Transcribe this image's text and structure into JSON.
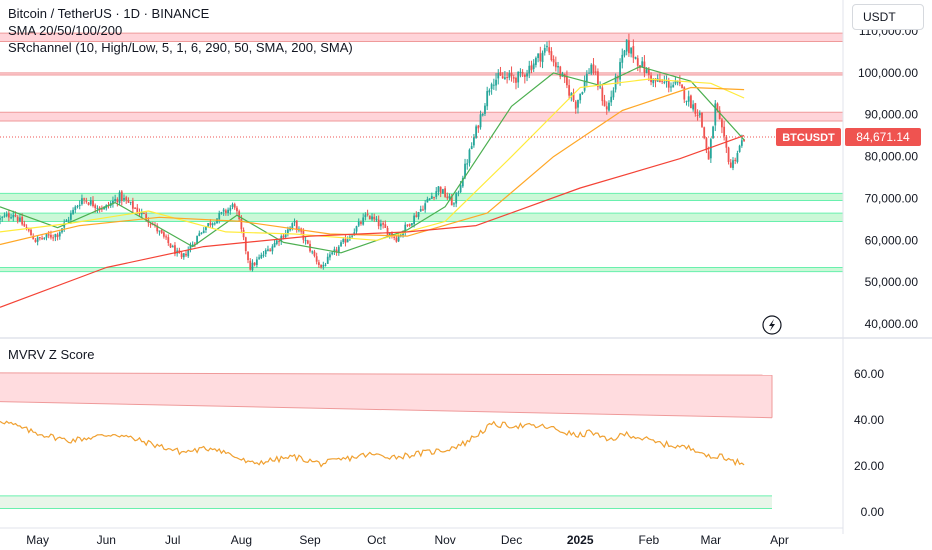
{
  "header": {
    "title": "Bitcoin / TetherUS · 1D · BINANCE",
    "indicator_sma": "SMA 20/50/100/200",
    "indicator_sr": "SRchannel (10, High/Low, 5, 1, 6, 290, 50, SMA, 200, SMA)",
    "currency": "USDT"
  },
  "colors": {
    "up": "#26a69a",
    "down": "#ef5350",
    "sma20": "#4caf50",
    "sma50": "#ffeb3b",
    "sma100": "#ffa726",
    "sma200": "#f44336",
    "resistance_fill": "#ffcdd2",
    "support_fill": "#b9f6ca",
    "mvrv_line": "#f0a030",
    "price_label_bg": "#ef5350"
  },
  "chart_data": [
    {
      "type": "candlestick",
      "symbol": "BTCUSDT",
      "last_price_label": "84,671.14",
      "last_price": 84671.14,
      "y_ticks": [
        "40,000.00",
        "50,000.00",
        "60,000.00",
        "70,000.00",
        "80,000.00",
        "90,000.00",
        "100,000.00",
        "110,000.00"
      ],
      "ylim": [
        36000,
        112000
      ],
      "time_labels": [
        "May",
        "Jun",
        "Jul",
        "Aug",
        "Sep",
        "Oct",
        "Nov",
        "Dec",
        "2025",
        "Feb",
        "Mar",
        "Apr"
      ],
      "sr_zones": [
        {
          "kind": "resistance",
          "low": 107500,
          "high": 109500
        },
        {
          "kind": "resistance",
          "low": 99500,
          "high": 100000
        },
        {
          "kind": "resistance",
          "low": 88500,
          "high": 90600
        },
        {
          "kind": "support",
          "low": 69500,
          "high": 71200
        },
        {
          "kind": "support",
          "low": 64500,
          "high": 66500
        },
        {
          "kind": "support",
          "low": 52500,
          "high": 53500
        }
      ],
      "price_path": [
        [
          "2024-04-14",
          65000
        ],
        [
          "2024-04-20",
          66500
        ],
        [
          "2024-04-30",
          60000
        ],
        [
          "2024-05-10",
          61500
        ],
        [
          "2024-05-21",
          70000
        ],
        [
          "2024-05-31",
          67500
        ],
        [
          "2024-06-07",
          70500
        ],
        [
          "2024-06-20",
          65000
        ],
        [
          "2024-07-05",
          55500
        ],
        [
          "2024-07-15",
          63000
        ],
        [
          "2024-07-29",
          68500
        ],
        [
          "2024-08-05",
          53500
        ],
        [
          "2024-08-25",
          64000
        ],
        [
          "2024-09-06",
          53500
        ],
        [
          "2024-09-27",
          66000
        ],
        [
          "2024-10-10",
          60500
        ],
        [
          "2024-10-29",
          72500
        ],
        [
          "2024-11-05",
          68500
        ],
        [
          "2024-11-22",
          98500
        ],
        [
          "2024-12-05",
          99000
        ],
        [
          "2024-12-17",
          106000
        ],
        [
          "2024-12-30",
          92500
        ],
        [
          "2025-01-06",
          102000
        ],
        [
          "2025-01-13",
          91000
        ],
        [
          "2025-01-22",
          106500
        ],
        [
          "2025-02-03",
          98000
        ],
        [
          "2025-02-14",
          97000
        ],
        [
          "2025-02-24",
          90000
        ],
        [
          "2025-02-28",
          79000
        ],
        [
          "2025-03-03",
          92000
        ],
        [
          "2025-03-10",
          77500
        ],
        [
          "2025-03-16",
          84671
        ]
      ],
      "sma_series": [
        {
          "name": "SMA 20",
          "points": [
            [
              "2024-04-14",
              68000
            ],
            [
              "2024-05-10",
              63000
            ],
            [
              "2024-06-05",
              69000
            ],
            [
              "2024-07-10",
              58500
            ],
            [
              "2024-07-30",
              66000
            ],
            [
              "2024-08-20",
              59500
            ],
            [
              "2024-09-15",
              57000
            ],
            [
              "2024-10-15",
              62500
            ],
            [
              "2024-11-01",
              68000
            ],
            [
              "2024-12-01",
              92000
            ],
            [
              "2024-12-20",
              100000
            ],
            [
              "2025-01-10",
              97000
            ],
            [
              "2025-01-28",
              101500
            ],
            [
              "2025-02-20",
              98000
            ],
            [
              "2025-03-16",
              84000
            ]
          ]
        },
        {
          "name": "SMA 50",
          "points": [
            [
              "2024-04-14",
              62000
            ],
            [
              "2024-05-15",
              64000
            ],
            [
              "2024-06-20",
              67000
            ],
            [
              "2024-07-25",
              62000
            ],
            [
              "2024-08-25",
              61500
            ],
            [
              "2024-10-01",
              60000
            ],
            [
              "2024-11-01",
              64500
            ],
            [
              "2024-12-01",
              80000
            ],
            [
              "2025-01-01",
              96500
            ],
            [
              "2025-02-01",
              98500
            ],
            [
              "2025-03-01",
              97500
            ],
            [
              "2025-03-16",
              94000
            ]
          ]
        },
        {
          "name": "SMA 100",
          "points": [
            [
              "2024-04-14",
              59000
            ],
            [
              "2024-05-20",
              63500
            ],
            [
              "2024-06-25",
              65500
            ],
            [
              "2024-08-01",
              64500
            ],
            [
              "2024-09-10",
              61500
            ],
            [
              "2024-10-15",
              61000
            ],
            [
              "2024-11-20",
              66500
            ],
            [
              "2024-12-20",
              80000
            ],
            [
              "2025-01-20",
              91000
            ],
            [
              "2025-02-20",
              96500
            ],
            [
              "2025-03-16",
              96000
            ]
          ]
        },
        {
          "name": "SMA 200",
          "points": [
            [
              "2024-04-14",
              44000
            ],
            [
              "2024-06-01",
              53500
            ],
            [
              "2024-07-15",
              58500
            ],
            [
              "2024-09-01",
              61000
            ],
            [
              "2024-10-15",
              62000
            ],
            [
              "2024-11-15",
              63500
            ],
            [
              "2025-01-01",
              72500
            ],
            [
              "2025-02-15",
              79500
            ],
            [
              "2025-03-16",
              85000
            ]
          ]
        }
      ]
    },
    {
      "type": "line",
      "title": "MVRV Z Score",
      "y_ticks": [
        "0.00",
        "20.00",
        "40.00",
        "60.00"
      ],
      "ylim": [
        -2,
        68
      ],
      "resistance_band": {
        "start": [
          48,
          60.5
        ],
        "end": [
          41,
          59.5
        ]
      },
      "support_band": {
        "low": 1.5,
        "high": 7
      },
      "path": [
        [
          "2024-04-14",
          40
        ],
        [
          "2024-04-28",
          35
        ],
        [
          "2024-05-15",
          31
        ],
        [
          "2024-06-05",
          34
        ],
        [
          "2024-06-20",
          30
        ],
        [
          "2024-07-05",
          26
        ],
        [
          "2024-07-20",
          28
        ],
        [
          "2024-08-05",
          21
        ],
        [
          "2024-08-25",
          24
        ],
        [
          "2024-09-06",
          21
        ],
        [
          "2024-09-27",
          25
        ],
        [
          "2024-10-10",
          24
        ],
        [
          "2024-11-01",
          27
        ],
        [
          "2024-11-10",
          30
        ],
        [
          "2024-11-22",
          38
        ],
        [
          "2024-12-17",
          37
        ],
        [
          "2024-12-31",
          33
        ],
        [
          "2025-01-06",
          35
        ],
        [
          "2025-01-13",
          31
        ],
        [
          "2025-01-22",
          34
        ],
        [
          "2025-02-05",
          30
        ],
        [
          "2025-02-24",
          27
        ],
        [
          "2025-03-01",
          23
        ],
        [
          "2025-03-06",
          25
        ],
        [
          "2025-03-10",
          22
        ],
        [
          "2025-03-16",
          21.5
        ]
      ]
    }
  ]
}
